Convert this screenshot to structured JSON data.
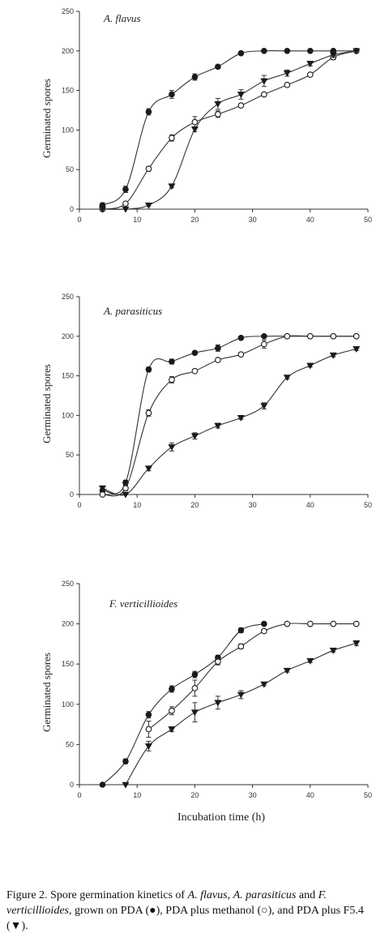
{
  "chart_data": [
    {
      "type": "line",
      "title": "A. flavus",
      "xlabel": "",
      "ylabel": "Germinated spores",
      "xlim": [
        0,
        50
      ],
      "ylim": [
        0,
        250
      ],
      "xticks": [
        0,
        10,
        20,
        30,
        40,
        50
      ],
      "yticks": [
        0,
        50,
        100,
        150,
        200,
        250
      ],
      "series": [
        {
          "marker": "filled-circle",
          "x": [
            4,
            8,
            12,
            16,
            20,
            24,
            28,
            32,
            36,
            40,
            44,
            48
          ],
          "y": [
            5,
            25,
            123,
            145,
            167,
            180,
            197,
            200,
            200,
            200,
            200,
            200
          ],
          "err": [
            3,
            4,
            4,
            5,
            4,
            2,
            2,
            0,
            0,
            0,
            0,
            0
          ]
        },
        {
          "marker": "open-circle",
          "x": [
            4,
            8,
            12,
            16,
            20,
            24,
            28,
            32,
            36,
            40,
            44,
            48
          ],
          "y": [
            0,
            7,
            51,
            90,
            110,
            120,
            131,
            145,
            157,
            170,
            192,
            200
          ],
          "err": [
            0,
            2,
            3,
            4,
            7,
            4,
            2,
            2,
            2,
            2,
            3,
            0
          ]
        },
        {
          "marker": "filled-triangle-down",
          "x": [
            4,
            8,
            12,
            16,
            20,
            24,
            28,
            32,
            36,
            40,
            44,
            48
          ],
          "y": [
            0,
            0,
            5,
            29,
            101,
            133,
            145,
            162,
            172,
            184,
            195,
            200
          ],
          "err": [
            0,
            0,
            1,
            2,
            3,
            7,
            6,
            7,
            4,
            3,
            3,
            0
          ]
        }
      ]
    },
    {
      "type": "line",
      "title": "A. parasiticus",
      "xlabel": "",
      "ylabel": "Germinated spores",
      "xlim": [
        0,
        50
      ],
      "ylim": [
        0,
        250
      ],
      "xticks": [
        0,
        10,
        20,
        30,
        40,
        50
      ],
      "yticks": [
        0,
        50,
        100,
        150,
        200,
        250
      ],
      "series": [
        {
          "marker": "filled-circle",
          "x": [
            4,
            8,
            12,
            16,
            20,
            24,
            28,
            32,
            36,
            40,
            44,
            48
          ],
          "y": [
            5,
            15,
            158,
            168,
            179,
            185,
            198,
            200,
            200,
            200,
            200,
            200
          ],
          "err": [
            2,
            3,
            3,
            3,
            2,
            4,
            2,
            0,
            0,
            0,
            0,
            0
          ]
        },
        {
          "marker": "open-circle",
          "x": [
            4,
            8,
            12,
            16,
            20,
            24,
            28,
            32,
            36,
            40,
            44,
            48
          ],
          "y": [
            0,
            8,
            103,
            145,
            156,
            170,
            177,
            190,
            200,
            200,
            200,
            200
          ],
          "err": [
            0,
            3,
            4,
            4,
            2,
            2,
            2,
            5,
            0,
            0,
            0,
            0
          ]
        },
        {
          "marker": "filled-triangle-down",
          "x": [
            4,
            8,
            12,
            16,
            20,
            24,
            28,
            32,
            36,
            40,
            44,
            48
          ],
          "y": [
            8,
            0,
            33,
            60,
            74,
            87,
            97,
            112,
            148,
            163,
            176,
            184
          ],
          "err": [
            2,
            0,
            3,
            5,
            4,
            3,
            2,
            4,
            2,
            2,
            2,
            2
          ]
        }
      ]
    },
    {
      "type": "line",
      "title": "F. verticillioides",
      "xlabel": "Incubation time (h)",
      "ylabel": "Germinated spores",
      "xlim": [
        0,
        50
      ],
      "ylim": [
        0,
        250
      ],
      "xticks": [
        0,
        10,
        20,
        30,
        40,
        50
      ],
      "yticks": [
        0,
        50,
        100,
        150,
        200,
        250
      ],
      "series": [
        {
          "marker": "filled-circle",
          "x": [
            4,
            8,
            12,
            16,
            20,
            24,
            28,
            32
          ],
          "y": [
            0,
            29,
            87,
            119,
            137,
            158,
            192,
            200
          ],
          "err": [
            0,
            3,
            4,
            4,
            4,
            3,
            3,
            0
          ]
        },
        {
          "marker": "open-circle",
          "x": [
            12,
            16,
            20,
            24,
            28,
            32,
            36,
            40,
            44,
            48
          ],
          "y": [
            69,
            92,
            120,
            153,
            172,
            191,
            200,
            200,
            200,
            200
          ],
          "err": [
            10,
            5,
            10,
            4,
            3,
            2,
            0,
            0,
            0,
            0
          ]
        },
        {
          "marker": "filled-triangle-down",
          "x": [
            8,
            12,
            16,
            20,
            24,
            28,
            32,
            36,
            40,
            44,
            48
          ],
          "y": [
            0,
            48,
            69,
            90,
            102,
            112,
            125,
            142,
            154,
            167,
            176
          ],
          "err": [
            0,
            6,
            3,
            12,
            8,
            5,
            2,
            2,
            2,
            2,
            3
          ]
        }
      ]
    }
  ],
  "caption": {
    "prefix": "Figure 2. Spore germination kinetics of ",
    "sp1": "A. flavus",
    "sep1": ", ",
    "sp2": "A. parasiticus",
    "and1": " and ",
    "sp3": "F. verticillioides",
    "rest1": ", grown on PDA (",
    "sym1": "●",
    "rest2": "), PDA plus methanol (",
    "sym2": "○",
    "rest3": "), and PDA plus F5.4 (",
    "sym3": "▼",
    "rest4": ")."
  }
}
